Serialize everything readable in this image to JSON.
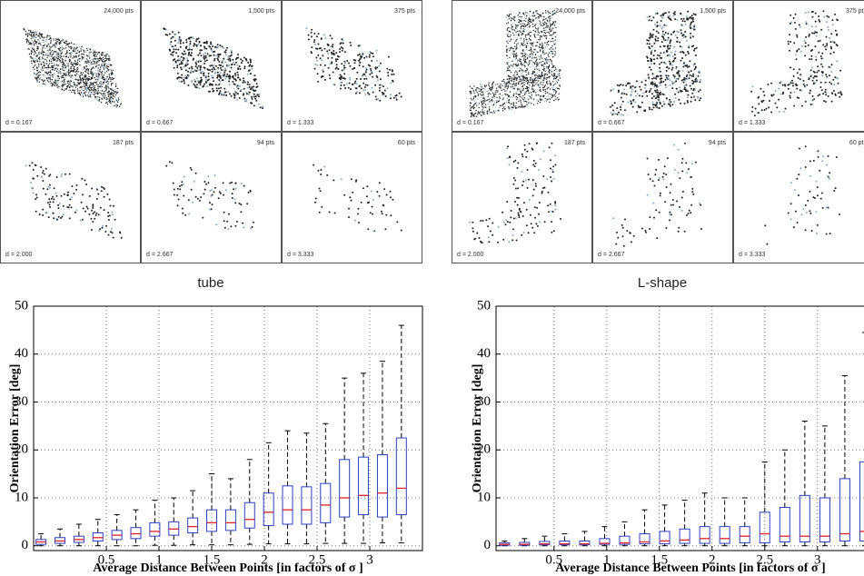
{
  "panels": [
    {
      "label": "tube",
      "thumbnails": [
        {
          "points": "24,000 pts",
          "d": "d = 0.167"
        },
        {
          "points": "1,500 pts",
          "d": "d = 0.667"
        },
        {
          "points": "375 pts",
          "d": "d = 1.333"
        },
        {
          "points": "187 pts",
          "d": "d = 2.000"
        },
        {
          "points": "94 pts",
          "d": "d = 2.667"
        },
        {
          "points": "60 pts",
          "d": "d = 3.333"
        }
      ]
    },
    {
      "label": "L-shape",
      "thumbnails": [
        {
          "points": "24,000 pts",
          "d": "d = 0.167"
        },
        {
          "points": "1,500 pts",
          "d": "d = 0.667"
        },
        {
          "points": "375 pts",
          "d": "d = 1.333"
        },
        {
          "points": "187 pts",
          "d": "d = 2.000"
        },
        {
          "points": "94 pts",
          "d": "d = 2.667"
        },
        {
          "points": "60 pts",
          "d": "d = 3.333"
        }
      ]
    }
  ],
  "chart_data": [
    {
      "type": "box",
      "xlabel": "Average Distance Between Points [in factors of  σ ]",
      "ylabel": "Orientation Error [deg]",
      "xlim": [
        -0.19,
        3.5
      ],
      "ylim": [
        -1,
        50
      ],
      "xticks": [
        0.5,
        1,
        1.5,
        2,
        2.5,
        3
      ],
      "yticks": [
        0,
        10,
        20,
        30,
        40,
        50
      ],
      "grid": true,
      "box_color": "#2b3fc0",
      "median_color": "#e0202a",
      "x": [
        -0.12,
        0.06,
        0.24,
        0.42,
        0.6,
        0.78,
        0.96,
        1.14,
        1.32,
        1.5,
        1.68,
        1.86,
        2.04,
        2.22,
        2.4,
        2.58,
        2.76,
        2.94,
        3.12,
        3.3
      ],
      "whisker_low": [
        0,
        0,
        0,
        0,
        0,
        0,
        0.1,
        0.1,
        0.2,
        0.2,
        0.2,
        0.3,
        0.4,
        0.4,
        0.4,
        0.5,
        0.5,
        0.5,
        0.6,
        0.6
      ],
      "q1": [
        0.3,
        0.5,
        0.7,
        1,
        1.3,
        1.5,
        2,
        2.2,
        2.7,
        3,
        3.2,
        3.7,
        4.2,
        4.5,
        4.5,
        4.8,
        6,
        6.5,
        6,
        6.5
      ],
      "median": [
        0.8,
        1,
        1.3,
        1.7,
        2.2,
        2.5,
        3,
        3.5,
        4,
        4.8,
        4.8,
        5.5,
        7,
        7.5,
        7.5,
        8.5,
        10,
        10.5,
        11,
        12
      ],
      "q3": [
        1.3,
        1.7,
        2,
        2.7,
        3.2,
        3.8,
        4.8,
        5,
        5.8,
        7.5,
        7.5,
        9,
        11,
        12.5,
        12.3,
        13,
        18,
        18.5,
        19,
        22.5
      ],
      "whisker_high": [
        2.5,
        3.5,
        4.5,
        5.5,
        6.5,
        7.5,
        9.5,
        10,
        11.5,
        15,
        14,
        18,
        21.5,
        24,
        23.5,
        25.5,
        35,
        36,
        38.5,
        46
      ]
    },
    {
      "type": "box",
      "xlabel": "Average Distance Between Points [in factors of  σ ]",
      "ylabel": "Orientation Error [deg]",
      "xlim": [
        -0.05,
        3.64
      ],
      "ylim": [
        -1,
        50
      ],
      "xticks": [
        0.5,
        1,
        1.5,
        2,
        2.5,
        3
      ],
      "yticks": [
        0,
        10,
        20,
        30,
        40,
        50
      ],
      "grid": true,
      "box_color": "#2b3fc0",
      "median_color": "#e0202a",
      "x": [
        0.03,
        0.22,
        0.41,
        0.6,
        0.79,
        0.98,
        1.17,
        1.36,
        1.55,
        1.74,
        1.93,
        2.12,
        2.31,
        2.5,
        2.69,
        2.88,
        3.07,
        3.26,
        3.45
      ],
      "whisker_low": [
        0,
        0,
        0,
        0,
        0,
        0,
        0,
        0,
        0,
        0,
        0,
        0,
        0,
        0,
        0,
        0,
        0,
        0,
        0
      ],
      "q1": [
        0.1,
        0.1,
        0.2,
        0.2,
        0.2,
        0.3,
        0.3,
        0.4,
        0.4,
        0.5,
        0.5,
        0.5,
        0.6,
        0.6,
        0.8,
        0.8,
        0.8,
        1,
        1
      ],
      "median": [
        0.3,
        0.3,
        0.4,
        0.4,
        0.4,
        0.5,
        0.6,
        0.8,
        1,
        1.2,
        1.5,
        1.5,
        2,
        2.5,
        2,
        2,
        2,
        2.5,
        3
      ],
      "q3": [
        0.6,
        0.7,
        0.9,
        1,
        1,
        1.5,
        2,
        2.5,
        3,
        3.5,
        4,
        4,
        4,
        7,
        8,
        10.5,
        10,
        14,
        17.5
      ],
      "whisker_high": [
        1,
        1.5,
        2,
        2.5,
        3,
        4,
        5,
        7.5,
        8.5,
        9.5,
        11,
        10,
        10,
        17.5,
        20,
        26,
        25,
        35.5,
        44.5
      ]
    }
  ]
}
